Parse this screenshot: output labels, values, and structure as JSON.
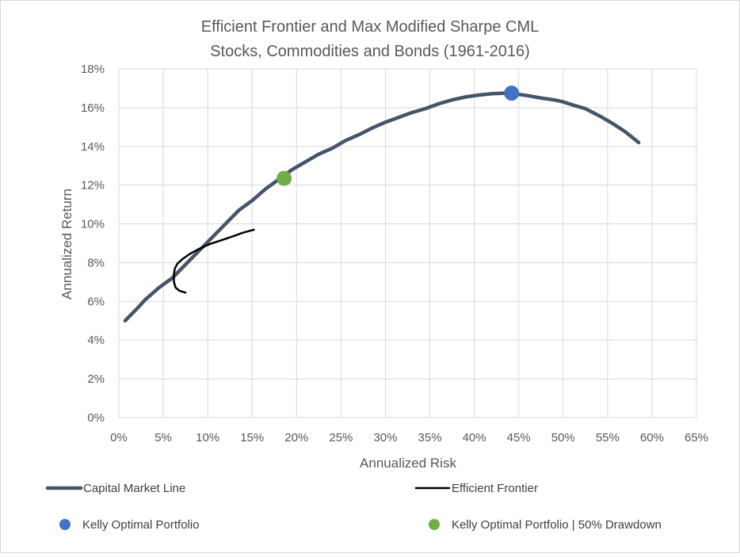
{
  "chart_data": {
    "type": "line",
    "title": [
      "Efficient Frontier and Max Modified Sharpe CML",
      "Stocks, Commodities and Bonds (1961-2016)"
    ],
    "xlabel": "Annualized Risk",
    "ylabel": "Annualized Return",
    "xlim": [
      0,
      65
    ],
    "ylim": [
      0,
      18
    ],
    "xticks": [
      0,
      5,
      10,
      15,
      20,
      25,
      30,
      35,
      40,
      45,
      50,
      55,
      60,
      65
    ],
    "yticks": [
      0,
      2,
      4,
      6,
      8,
      10,
      12,
      14,
      16,
      18
    ],
    "xtick_labels": [
      "0%",
      "5%",
      "10%",
      "15%",
      "20%",
      "25%",
      "30%",
      "35%",
      "40%",
      "45%",
      "50%",
      "55%",
      "60%",
      "65%"
    ],
    "ytick_labels": [
      "0%",
      "2%",
      "4%",
      "6%",
      "8%",
      "10%",
      "12%",
      "14%",
      "16%",
      "18%"
    ],
    "grid": true,
    "legend_position": "bottom",
    "series": [
      {
        "name": "Capital Market Line",
        "kind": "line",
        "color": "#44546a",
        "x": [
          0.7,
          2.0,
          3.0,
          4.5,
          6.0,
          7.5,
          9.0,
          10.5,
          12.0,
          13.5,
          15.0,
          16.5,
          18.0,
          19.5,
          21.0,
          22.5,
          24.0,
          25.5,
          27.0,
          28.5,
          30.0,
          31.5,
          33.0,
          34.5,
          36.0,
          37.5,
          39.0,
          40.5,
          42.0,
          43.5,
          44.5,
          46.0,
          47.5,
          49.0,
          50.0,
          51.0,
          52.5,
          54.0,
          55.5,
          57.0,
          58.5
        ],
        "y": [
          5.0,
          5.6,
          6.1,
          6.7,
          7.2,
          7.9,
          8.6,
          9.3,
          10.0,
          10.7,
          11.2,
          11.8,
          12.3,
          12.8,
          13.2,
          13.6,
          13.9,
          14.3,
          14.6,
          14.95,
          15.25,
          15.5,
          15.75,
          15.95,
          16.2,
          16.4,
          16.55,
          16.65,
          16.72,
          16.75,
          16.72,
          16.62,
          16.5,
          16.4,
          16.3,
          16.15,
          15.95,
          15.6,
          15.2,
          14.75,
          14.2
        ]
      },
      {
        "name": "Efficient Frontier",
        "kind": "line",
        "color": "#000000",
        "x": [
          7.5,
          6.8,
          6.4,
          6.2,
          6.2,
          6.3,
          6.6,
          7.2,
          8.0,
          9.0,
          10.2,
          11.5,
          12.8,
          14.0,
          15.2
        ],
        "y": [
          6.45,
          6.55,
          6.7,
          7.0,
          7.4,
          7.7,
          7.95,
          8.2,
          8.45,
          8.7,
          8.95,
          9.15,
          9.35,
          9.55,
          9.7
        ]
      },
      {
        "name": "Kelly Optimal Portfolio",
        "kind": "point",
        "color": "#4472c4",
        "x": [
          44.2
        ],
        "y": [
          16.75
        ]
      },
      {
        "name": "Kelly Optimal Portfolio | 50% Drawdown",
        "kind": "point",
        "color": "#70ad47",
        "x": [
          18.6
        ],
        "y": [
          12.35
        ]
      }
    ]
  }
}
